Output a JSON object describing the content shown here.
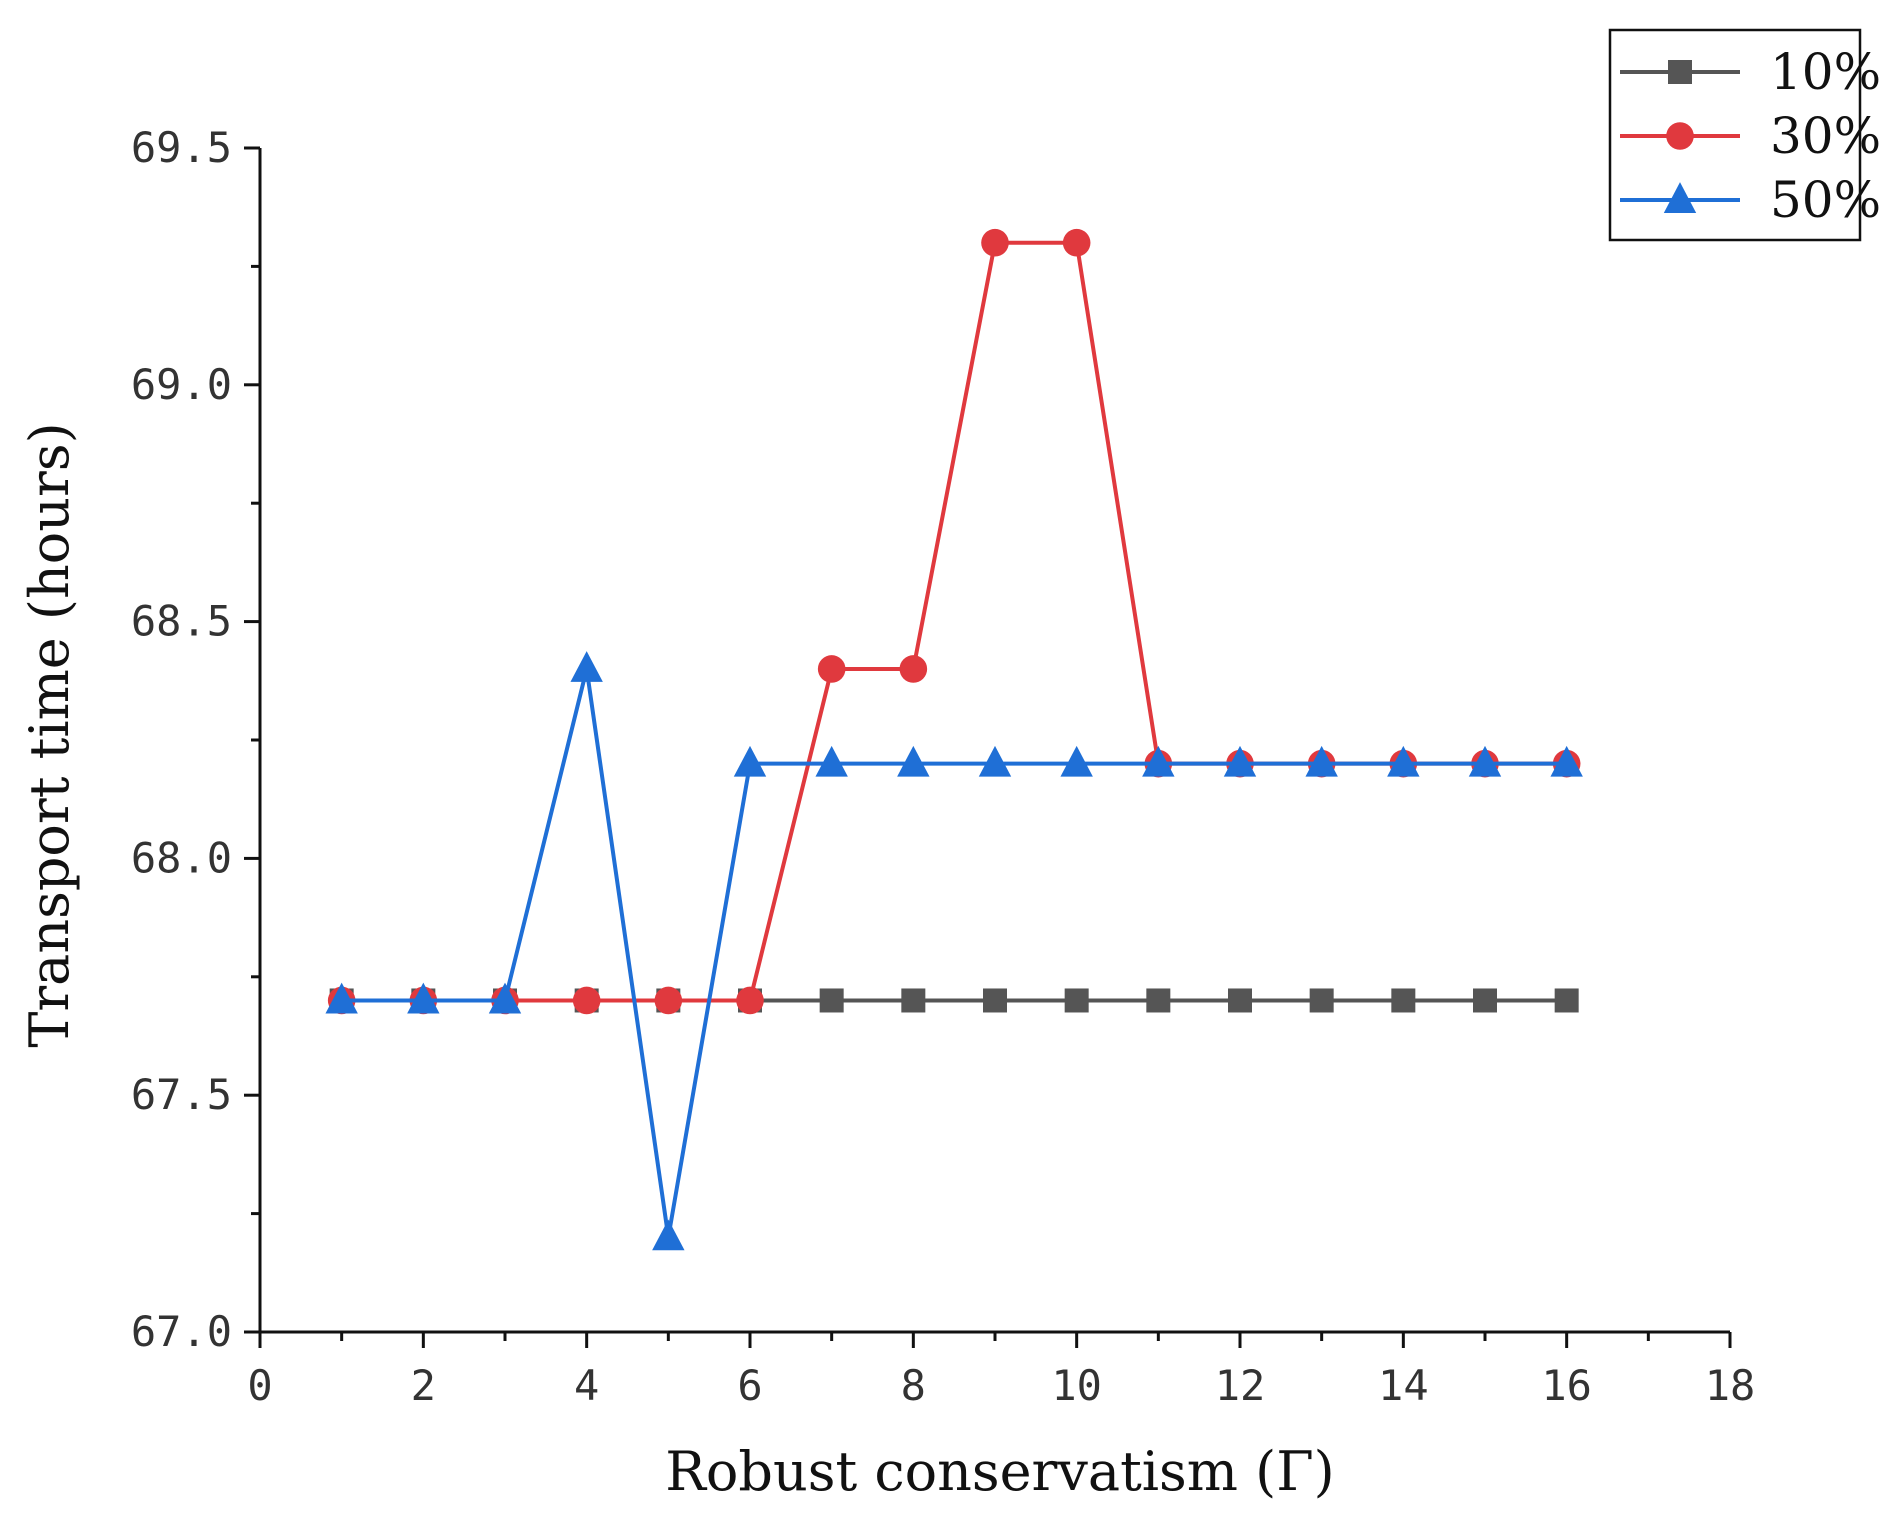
{
  "chart_data": {
    "type": "line",
    "title": "",
    "xlabel": "Robust conservatism (Γ)",
    "ylabel": "Transport time (hours)",
    "xlim": [
      0,
      18
    ],
    "ylim": [
      67.0,
      69.5
    ],
    "x_ticks": [
      0,
      2,
      4,
      6,
      8,
      10,
      12,
      14,
      16,
      18
    ],
    "x_tick_labels": [
      "0",
      "2",
      "4",
      "6",
      "8",
      "10",
      "12",
      "14",
      "16",
      "18"
    ],
    "y_ticks": [
      67.0,
      67.5,
      68.0,
      68.5,
      69.0,
      69.5
    ],
    "y_tick_labels": [
      "67.0",
      "67.5",
      "68.0",
      "68.5",
      "69.0",
      "69.5"
    ],
    "grid": false,
    "legend_position": "top-right",
    "x": [
      1,
      2,
      3,
      4,
      5,
      6,
      7,
      8,
      9,
      10,
      11,
      12,
      13,
      14,
      15,
      16
    ],
    "series": [
      {
        "name": "10%",
        "color": "#555555",
        "marker": "square",
        "values": [
          67.7,
          67.7,
          67.7,
          67.7,
          67.7,
          67.7,
          67.7,
          67.7,
          67.7,
          67.7,
          67.7,
          67.7,
          67.7,
          67.7,
          67.7,
          67.7
        ]
      },
      {
        "name": "30%",
        "color": "#e0393e",
        "marker": "circle",
        "values": [
          67.7,
          67.7,
          67.7,
          67.7,
          67.7,
          67.7,
          68.4,
          68.4,
          69.3,
          69.3,
          68.2,
          68.2,
          68.2,
          68.2,
          68.2,
          68.2
        ]
      },
      {
        "name": "50%",
        "color": "#1f6fd6",
        "marker": "triangle",
        "values": [
          67.7,
          67.7,
          67.7,
          68.4,
          67.2,
          68.2,
          68.2,
          68.2,
          68.2,
          68.2,
          68.2,
          68.2,
          68.2,
          68.2,
          68.2,
          68.2
        ]
      }
    ]
  }
}
